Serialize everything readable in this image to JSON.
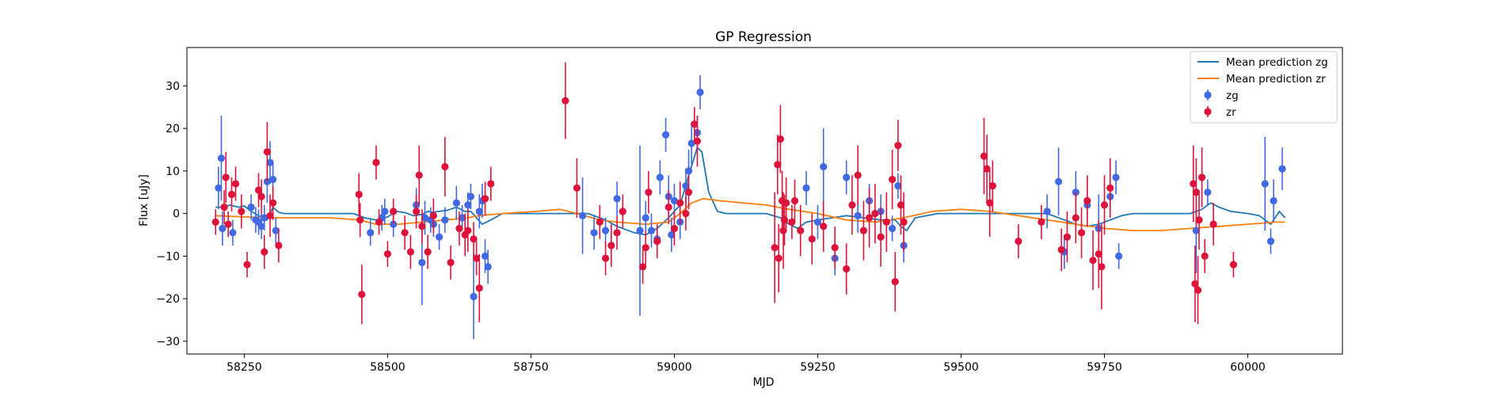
{
  "chart_data": {
    "type": "scatter",
    "title": "GP Regression",
    "xlabel": "MJD",
    "ylabel": "Flux [uJy]",
    "xlim": [
      58150,
      60165
    ],
    "ylim": [
      -33,
      39
    ],
    "xticks": [
      58250,
      58500,
      58750,
      59000,
      59250,
      59500,
      59750,
      60000
    ],
    "yticks": [
      -30,
      -20,
      -10,
      0,
      10,
      20,
      30
    ],
    "grid": false,
    "legend_position": "top-right",
    "series": [
      {
        "name": "Mean prediction zg",
        "kind": "line",
        "color": "#1f77b4",
        "x": [
          58200,
          58215,
          58225,
          58240,
          58250,
          58262,
          58275,
          58290,
          58300,
          58310,
          58320,
          58350,
          58400,
          58440,
          58460,
          58480,
          58500,
          58515,
          58530,
          58545,
          58560,
          58570,
          58580,
          58590,
          58605,
          58620,
          58635,
          58645,
          58655,
          58665,
          58680,
          58700,
          58750,
          58800,
          58850,
          58880,
          58900,
          58930,
          58950,
          58970,
          58990,
          59010,
          59025,
          59040,
          59048,
          59060,
          59075,
          59090,
          59120,
          59160,
          59185,
          59200,
          59215,
          59230,
          59250,
          59275,
          59300,
          59330,
          59360,
          59385,
          59395,
          59405,
          59420,
          59460,
          59500,
          59550,
          59600,
          59650,
          59680,
          59700,
          59720,
          59740,
          59760,
          59780,
          59800,
          59850,
          59900,
          59920,
          59935,
          59950,
          59970,
          60000,
          60020,
          60040,
          60055,
          60065
        ],
        "y": [
          1.5,
          1.5,
          2.0,
          1.5,
          1.8,
          0.5,
          -0.5,
          -1.5,
          1.5,
          0.3,
          0,
          0,
          0,
          0,
          -1.0,
          -1.5,
          -0.8,
          0.5,
          0.2,
          -0.5,
          -0.2,
          0.5,
          0.3,
          0.5,
          0.8,
          1.5,
          0.5,
          0.5,
          -1.0,
          -2.5,
          -1.5,
          0,
          0,
          0,
          0,
          -1.5,
          -3.0,
          -4.5,
          -5.0,
          -3.5,
          -1.0,
          2.0,
          9.0,
          15.5,
          14.5,
          5.0,
          0.5,
          0,
          0,
          0,
          -1.0,
          -2.5,
          -3.5,
          -2.0,
          -1.5,
          -1.0,
          -0.5,
          -1.0,
          -1.5,
          -1.5,
          -3.0,
          -4.0,
          -1.0,
          0,
          0,
          0,
          0,
          0,
          -1.5,
          -2.5,
          -3.0,
          -2.5,
          -1.5,
          -0.5,
          0,
          0,
          0,
          1.0,
          2.5,
          1.5,
          0.5,
          0,
          -0.5,
          -2.5,
          0.5,
          -1.0
        ]
      },
      {
        "name": "Mean prediction zr",
        "kind": "line",
        "color": "#ff7f0e",
        "x": [
          58200,
          58250,
          58300,
          58350,
          58400,
          58450,
          58480,
          58520,
          58560,
          58600,
          58640,
          58660,
          58700,
          58760,
          58800,
          58830,
          58870,
          58900,
          58950,
          58990,
          59010,
          59030,
          59050,
          59080,
          59120,
          59160,
          59200,
          59250,
          59300,
          59350,
          59400,
          59450,
          59500,
          59550,
          59600,
          59650,
          59700,
          59750,
          59800,
          59850,
          59900,
          59950,
          60000,
          60050,
          60065
        ],
        "y": [
          -0.5,
          -0.8,
          -1.0,
          -1.0,
          -1.0,
          -1.5,
          -2.5,
          -2.5,
          -2.0,
          -1.5,
          -1.0,
          -0.5,
          0,
          0.5,
          1.0,
          0,
          -1.5,
          -2.0,
          -2.5,
          -2.0,
          0,
          2.5,
          3.5,
          3.0,
          2.5,
          2.0,
          1.0,
          0,
          -1.5,
          -2.0,
          -1.0,
          0.5,
          1.0,
          0.5,
          -0.5,
          -1.5,
          -2.5,
          -3.5,
          -4.0,
          -4.0,
          -3.5,
          -3.0,
          -2.5,
          -2.0,
          -2.0
        ]
      },
      {
        "name": "zg",
        "kind": "errorbar",
        "color": "#4169e1",
        "x": [
          58205,
          58210,
          58212,
          58230,
          58262,
          58270,
          58275,
          58280,
          58285,
          58290,
          58295,
          58300,
          58305,
          58470,
          58490,
          58495,
          58510,
          58550,
          58560,
          58565,
          58575,
          58580,
          58590,
          58600,
          58620,
          58630,
          58640,
          58645,
          58650,
          58660,
          58665,
          58670,
          58675,
          58840,
          58860,
          58880,
          58900,
          58940,
          58950,
          58960,
          58970,
          58975,
          58985,
          58990,
          58995,
          59000,
          59010,
          59020,
          59025,
          59030,
          59040,
          59045,
          59230,
          59250,
          59260,
          59280,
          59300,
          59320,
          59340,
          59360,
          59380,
          59390,
          59400,
          59650,
          59670,
          59680,
          59700,
          59720,
          59740,
          59760,
          59770,
          59775,
          59910,
          59930,
          60030,
          60040,
          60045,
          60060
        ],
        "y": [
          6.0,
          13.0,
          -3.5,
          -4.5,
          1.5,
          -1.5,
          -2.0,
          -3.0,
          -1.0,
          7.5,
          12.0,
          8.0,
          -4.0,
          -4.5,
          -1.0,
          0.5,
          -2.5,
          2.0,
          -11.5,
          -1.0,
          -1.5,
          -2.5,
          -5.5,
          -1.5,
          2.5,
          -1.0,
          2.0,
          4.0,
          -19.5,
          0.5,
          3.0,
          -10.0,
          -12.5,
          -0.5,
          -4.5,
          -4.0,
          3.5,
          -4.0,
          -1.0,
          -4.0,
          -6.0,
          8.5,
          18.5,
          4.0,
          -5.0,
          3.0,
          -2.0,
          6.5,
          10.0,
          16.5,
          19.0,
          28.5,
          6.0,
          -2.0,
          11.0,
          -10.5,
          8.5,
          -0.5,
          3.0,
          0.5,
          -3.5,
          6.5,
          -7.5,
          0.5,
          7.5,
          -9.0,
          5.0,
          2.0,
          -3.5,
          4.0,
          8.5,
          -10.0,
          -4.0,
          5.0,
          7.0,
          -6.5,
          3.0,
          10.5
        ],
        "yerr": [
          5.0,
          10.0,
          4.0,
          3.0,
          3.0,
          3.0,
          3.0,
          3.0,
          3.0,
          5.0,
          5.0,
          4.0,
          3.0,
          3.0,
          3.0,
          3.0,
          3.0,
          4.0,
          10.0,
          4.0,
          3.0,
          3.0,
          3.0,
          3.0,
          4.0,
          3.0,
          3.0,
          3.0,
          10.0,
          4.0,
          4.0,
          4.0,
          4.0,
          9.0,
          4.0,
          3.0,
          4.0,
          20.0,
          4.0,
          4.0,
          3.0,
          4.0,
          4.0,
          5.0,
          4.0,
          4.0,
          4.0,
          4.0,
          5.0,
          5.0,
          4.0,
          4.0,
          4.0,
          4.0,
          9.0,
          4.0,
          4.0,
          4.0,
          4.0,
          4.0,
          3.0,
          3.0,
          4.0,
          4.0,
          8.0,
          4.0,
          5.0,
          4.0,
          8.0,
          4.0,
          4.0,
          3.0,
          10.0,
          3.0,
          11.0,
          3.0,
          5.0,
          5.0
        ]
      },
      {
        "name": "zr",
        "kind": "errorbar",
        "color": "#dc143c",
        "x": [
          58200,
          58215,
          58218,
          58222,
          58228,
          58235,
          58245,
          58255,
          58275,
          58280,
          58285,
          58290,
          58295,
          58300,
          58310,
          58450,
          58452,
          58455,
          58480,
          58485,
          58500,
          58510,
          58530,
          58540,
          58550,
          58555,
          58560,
          58570,
          58580,
          58600,
          58610,
          58625,
          58635,
          58640,
          58650,
          58655,
          58660,
          58670,
          58680,
          58810,
          58830,
          58870,
          58880,
          58890,
          58900,
          58910,
          58945,
          58950,
          58955,
          58970,
          58990,
          59000,
          59010,
          59020,
          59025,
          59035,
          59040,
          59175,
          59180,
          59182,
          59185,
          59188,
          59190,
          59192,
          59195,
          59205,
          59210,
          59220,
          59240,
          59260,
          59280,
          59300,
          59310,
          59320,
          59330,
          59340,
          59350,
          59360,
          59370,
          59380,
          59385,
          59390,
          59395,
          59400,
          59540,
          59545,
          59550,
          59555,
          59600,
          59640,
          59675,
          59685,
          59700,
          59710,
          59720,
          59730,
          59740,
          59745,
          59750,
          59760,
          59905,
          59908,
          59910,
          59913,
          59915,
          59920,
          59925,
          59940,
          59975
        ],
        "y": [
          -2.0,
          1.5,
          8.5,
          -2.5,
          4.5,
          7.0,
          0.5,
          -12.0,
          5.5,
          4.0,
          -9.0,
          14.5,
          -0.5,
          2.5,
          -7.5,
          4.5,
          -1.5,
          -19.0,
          12.0,
          -2.0,
          -9.5,
          0.5,
          -4.5,
          -9.0,
          0.5,
          9.0,
          -3.0,
          -9.0,
          -0.5,
          11.0,
          -11.5,
          -3.5,
          -5.0,
          -4.0,
          -6.0,
          -10.5,
          -17.5,
          3.5,
          7.0,
          26.5,
          6.0,
          -2.0,
          -10.5,
          -7.5,
          -4.5,
          0.5,
          -12.5,
          -8.0,
          5.0,
          -6.5,
          1.5,
          -3.5,
          2.5,
          0.0,
          5.0,
          21.0,
          17.0,
          -8.0,
          11.5,
          -10.5,
          17.5,
          3.0,
          -4.0,
          -1.5,
          2.5,
          -2.0,
          3.0,
          -4.0,
          -6.0,
          -3.0,
          -8.0,
          -13.0,
          2.0,
          9.0,
          -4.0,
          -1.0,
          0.0,
          -5.5,
          -2.0,
          8.0,
          -16.0,
          16.0,
          2.0,
          -2.0,
          13.5,
          10.5,
          2.5,
          6.5,
          -6.5,
          -2.0,
          -8.5,
          -5.5,
          -1.0,
          -4.5,
          3.0,
          -11.0,
          -9.5,
          -12.5,
          2.0,
          6.0,
          7.0,
          -16.5,
          5.0,
          -18.0,
          -1.5,
          8.5,
          -10.0,
          -2.5,
          -12.0
        ],
        "yerr": [
          3.0,
          4.0,
          6.0,
          3.0,
          4.0,
          4.0,
          4.0,
          3.0,
          4.0,
          4.0,
          4.0,
          7.0,
          5.0,
          4.0,
          4.0,
          5.0,
          4.0,
          7.0,
          4.0,
          3.0,
          3.0,
          3.0,
          4.0,
          4.0,
          4.0,
          7.0,
          4.0,
          4.0,
          4.0,
          7.0,
          4.0,
          4.0,
          5.0,
          5.0,
          4.0,
          4.0,
          8.0,
          4.0,
          4.0,
          9.0,
          7.0,
          4.0,
          4.0,
          5.0,
          4.0,
          4.0,
          4.0,
          4.0,
          5.0,
          4.0,
          4.0,
          4.0,
          5.0,
          4.0,
          4.0,
          4.0,
          6.0,
          13.0,
          7.0,
          8.0,
          8.0,
          7.0,
          9.0,
          6.0,
          6.0,
          4.0,
          5.0,
          6.0,
          6.0,
          6.0,
          5.0,
          6.0,
          7.0,
          7.0,
          7.0,
          7.0,
          7.0,
          7.0,
          7.0,
          7.0,
          7.0,
          6.0,
          7.0,
          7.0,
          9.0,
          8.0,
          8.0,
          6.0,
          4.0,
          4.0,
          5.0,
          6.0,
          6.0,
          6.0,
          6.0,
          7.0,
          8.0,
          10.0,
          7.0,
          7.0,
          9.0,
          9.0,
          8.0,
          8.0,
          7.0,
          7.0,
          4.0,
          5.0,
          3.0
        ]
      }
    ]
  }
}
